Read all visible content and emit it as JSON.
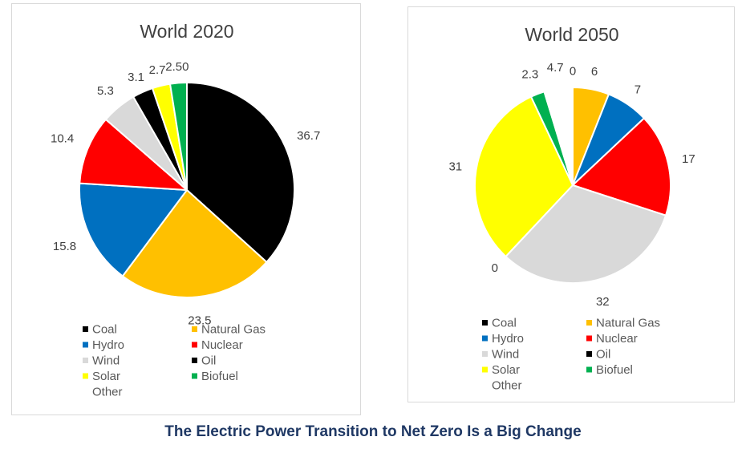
{
  "caption": "The Electric Power Transition to Net Zero Is a Big Change",
  "colors": {
    "caption": "#1f3864",
    "Coal": "#000000",
    "Natural Gas": "#ffc000",
    "Hydro": "#0070c0",
    "Nuclear": "#ff0000",
    "Wind": "#d9d9d9",
    "Oil": "#000000",
    "Solar": "#ffff00",
    "Biofuel": "#00b050",
    "Other": "#ffffff"
  },
  "chart_data": [
    {
      "type": "pie",
      "title": "World 2020",
      "legend": [
        "Coal",
        "Natural Gas",
        "Hydro",
        "Nuclear",
        "Wind",
        "Oil",
        "Solar",
        "Biofuel",
        "Other"
      ],
      "legend_position": "bottom",
      "slices": [
        {
          "category": "Coal",
          "value": 36.7,
          "label": "36.7"
        },
        {
          "category": "Natural Gas",
          "value": 23.5,
          "label": "23.5"
        },
        {
          "category": "Hydro",
          "value": 15.8,
          "label": "15.8"
        },
        {
          "category": "Nuclear",
          "value": 10.4,
          "label": "10.4"
        },
        {
          "category": "Wind",
          "value": 5.3,
          "label": "5.3"
        },
        {
          "category": "Oil",
          "value": 3.1,
          "label": "3.1"
        },
        {
          "category": "Solar",
          "value": 2.7,
          "label": "2.7"
        },
        {
          "category": "Biofuel",
          "value": 2.5,
          "label": "2.50"
        }
      ]
    },
    {
      "type": "pie",
      "title": "World 2050",
      "legend": [
        "Coal",
        "Natural Gas",
        "Hydro",
        "Nuclear",
        "Wind",
        "Oil",
        "Solar",
        "Biofuel",
        "Other"
      ],
      "legend_position": "bottom",
      "slices": [
        {
          "category": "Coal",
          "value": 0,
          "label": "0"
        },
        {
          "category": "Natural Gas",
          "value": 6,
          "label": "6"
        },
        {
          "category": "Hydro",
          "value": 7,
          "label": "7"
        },
        {
          "category": "Nuclear",
          "value": 17,
          "label": "17"
        },
        {
          "category": "Wind",
          "value": 32,
          "label": "32"
        },
        {
          "category": "Oil",
          "value": 0,
          "label": "0"
        },
        {
          "category": "Solar",
          "value": 31,
          "label": "31"
        },
        {
          "category": "Biofuel",
          "value": 2.3,
          "label": "2.3"
        },
        {
          "category": "Other",
          "value": 4.7,
          "label": "4.7"
        }
      ]
    }
  ]
}
